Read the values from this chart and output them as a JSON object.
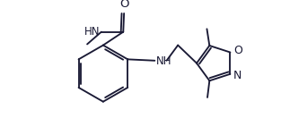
{
  "bg_color": "#ffffff",
  "line_color": "#1a1a35",
  "text_color": "#1a1a35",
  "line_width": 1.35,
  "font_size": 7.5,
  "figsize": [
    3.13,
    1.51
  ],
  "dpi": 100,
  "xlim": [
    0.0,
    10.3
  ],
  "ylim": [
    0.3,
    5.1
  ]
}
